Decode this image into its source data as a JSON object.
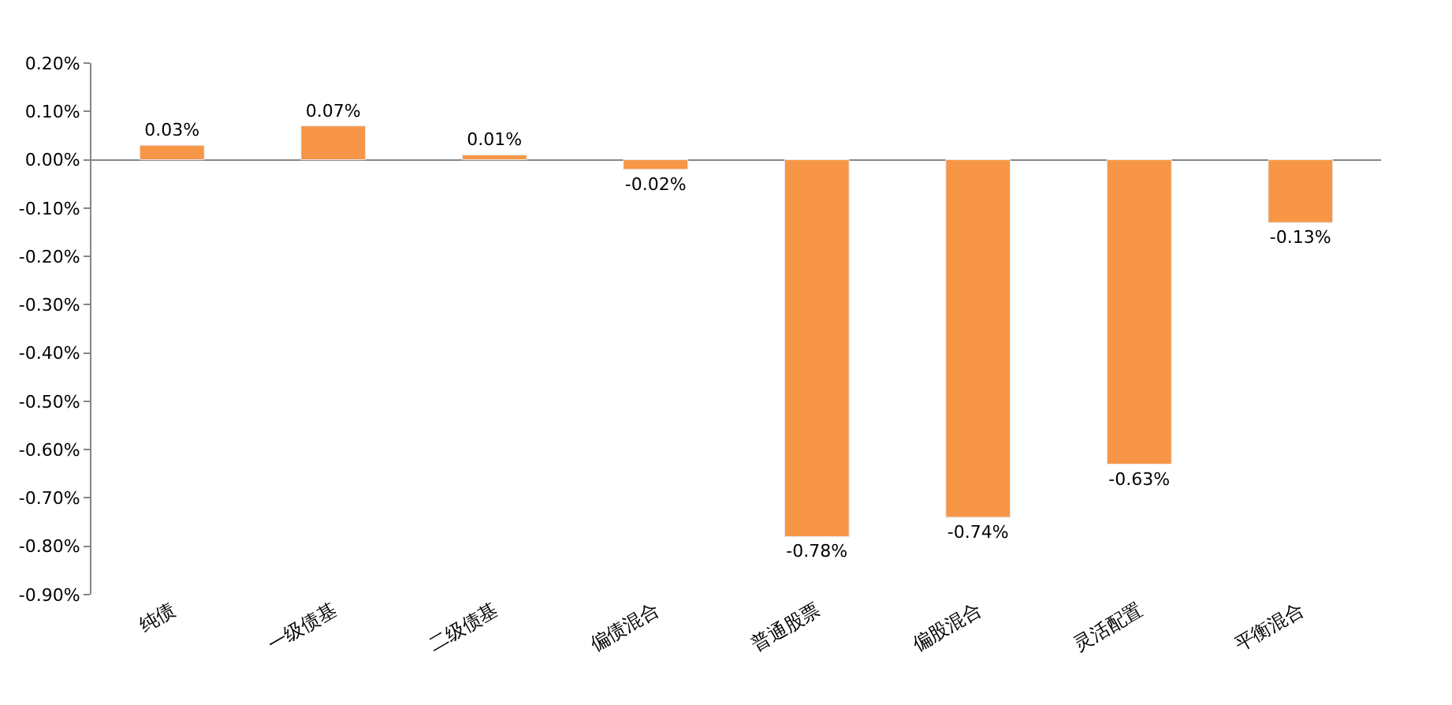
{
  "chart_data": {
    "type": "bar",
    "categories": [
      "纯债",
      "一级债基",
      "二级债基",
      "偏债混合",
      "普通股票",
      "偏股混合",
      "灵活配置",
      "平衡混合"
    ],
    "values": [
      0.03,
      0.07,
      0.01,
      -0.02,
      -0.78,
      -0.74,
      -0.63,
      -0.13
    ],
    "value_labels": [
      "0.03%",
      "0.07%",
      "0.01%",
      "-0.02%",
      "-0.78%",
      "-0.74%",
      "-0.63%",
      "-0.13%"
    ],
    "color": "#f79646",
    "ylim": [
      -0.9,
      0.2
    ],
    "yticks": [
      {
        "value": 0.2,
        "label": "0.20%"
      },
      {
        "value": 0.1,
        "label": "0.10%"
      },
      {
        "value": 0,
        "label": "0.00%"
      },
      {
        "value": -0.1,
        "label": "-0.10%"
      },
      {
        "value": -0.2,
        "label": "-0.20%"
      },
      {
        "value": -0.3,
        "label": "-0.30%"
      },
      {
        "value": -0.4,
        "label": "-0.40%"
      },
      {
        "value": -0.5,
        "label": "-0.50%"
      },
      {
        "value": -0.6,
        "label": "-0.60%"
      },
      {
        "value": -0.7,
        "label": "-0.70%"
      },
      {
        "value": -0.8,
        "label": "-0.80%"
      },
      {
        "value": -0.9,
        "label": "-0.90%"
      }
    ],
    "legend": false
  }
}
